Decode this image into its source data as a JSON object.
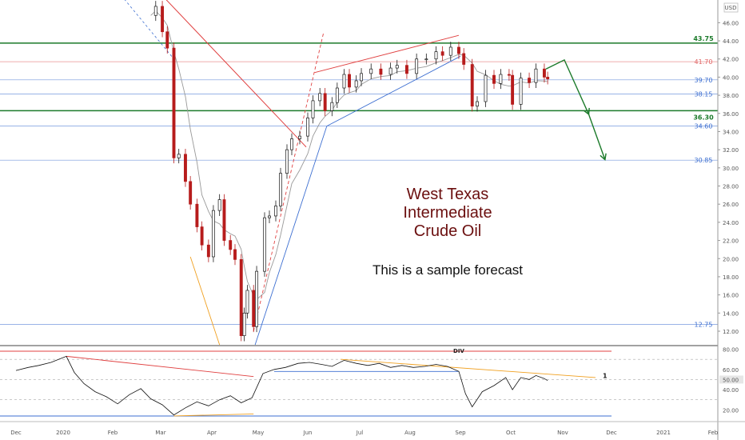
{
  "chart_data": {
    "type": "candlestick",
    "instrument": "West Texas Intermediate Crude Oil",
    "currency": "USD",
    "annotation_title_lines": [
      "West Texas",
      "Intermediate",
      "Crude Oil"
    ],
    "annotation_subtitle": "This is a sample forecast",
    "price_axis": {
      "range": [
        10.5,
        48.5
      ],
      "ticks": [
        "46.00",
        "44.00",
        "42.00",
        "40.00",
        "38.00",
        "36.00",
        "34.00",
        "32.00",
        "30.00",
        "28.00",
        "26.00",
        "24.00",
        "22.00",
        "20.00",
        "18.00",
        "16.00",
        "14.00",
        "12.00"
      ]
    },
    "x_axis": {
      "ticks": [
        "Dec",
        "2020",
        "Feb",
        "Mar",
        "Apr",
        "May",
        "Jun",
        "Jul",
        "Aug",
        "Sep",
        "Oct",
        "Nov",
        "Dec",
        "2021",
        "Feb"
      ]
    },
    "levels": [
      {
        "value": 43.75,
        "label": "43.75",
        "color": "#1b7a2a",
        "style": "strong"
      },
      {
        "value": 41.7,
        "label": "41.70",
        "color": "#e06666",
        "style": "thin"
      },
      {
        "value": 39.7,
        "label": "39.70",
        "color": "#3d6fd1",
        "style": "thin"
      },
      {
        "value": 38.15,
        "label": "38.15",
        "color": "#3d6fd1",
        "style": "thin"
      },
      {
        "value": 36.3,
        "label": "36.30",
        "color": "#1b7a2a",
        "style": "strong"
      },
      {
        "value": 34.6,
        "label": "34.60",
        "color": "#3d6fd1",
        "style": "thin"
      },
      {
        "value": 30.85,
        "label": "30.85",
        "color": "#3d6fd1",
        "style": "thin"
      },
      {
        "value": 12.75,
        "label": "12.75",
        "color": "#3d6fd1",
        "style": "thin"
      }
    ],
    "forecast_path": [
      {
        "date": "2020-10-22",
        "price": 40.9
      },
      {
        "date": "2020-11-02",
        "price": 41.9
      },
      {
        "date": "2020-11-17",
        "price": 35.9
      },
      {
        "date": "2020-11-27",
        "price": 30.9
      }
    ],
    "price_series": [
      {
        "date": "2020-02-24",
        "price": 46.8
      },
      {
        "date": "2020-02-27",
        "price": 47.8
      },
      {
        "date": "2020-03-02",
        "price": 45.0
      },
      {
        "date": "2020-03-05",
        "price": 43.2
      },
      {
        "date": "2020-03-09",
        "price": 31.1
      },
      {
        "date": "2020-03-12",
        "price": 31.5
      },
      {
        "date": "2020-03-16",
        "price": 28.5
      },
      {
        "date": "2020-03-19",
        "price": 26.0
      },
      {
        "date": "2020-03-23",
        "price": 23.5
      },
      {
        "date": "2020-03-26",
        "price": 21.5
      },
      {
        "date": "2020-03-30",
        "price": 20.2
      },
      {
        "date": "2020-04-02",
        "price": 25.3
      },
      {
        "date": "2020-04-06",
        "price": 26.5
      },
      {
        "date": "2020-04-09",
        "price": 22.0
      },
      {
        "date": "2020-04-13",
        "price": 21.0
      },
      {
        "date": "2020-04-16",
        "price": 19.9
      },
      {
        "date": "2020-04-20",
        "price": 11.5
      },
      {
        "date": "2020-04-22",
        "price": 14.0
      },
      {
        "date": "2020-04-24",
        "price": 16.5
      },
      {
        "date": "2020-04-28",
        "price": 12.5
      },
      {
        "date": "2020-04-30",
        "price": 18.6
      },
      {
        "date": "2020-05-05",
        "price": 24.5
      },
      {
        "date": "2020-05-08",
        "price": 24.7
      },
      {
        "date": "2020-05-12",
        "price": 25.8
      },
      {
        "date": "2020-05-15",
        "price": 29.4
      },
      {
        "date": "2020-05-19",
        "price": 32.0
      },
      {
        "date": "2020-05-22",
        "price": 33.2
      },
      {
        "date": "2020-05-27",
        "price": 33.5
      },
      {
        "date": "2020-06-01",
        "price": 35.5
      },
      {
        "date": "2020-06-04",
        "price": 37.4
      },
      {
        "date": "2020-06-08",
        "price": 38.2
      },
      {
        "date": "2020-06-11",
        "price": 36.3
      },
      {
        "date": "2020-06-15",
        "price": 37.2
      },
      {
        "date": "2020-06-18",
        "price": 38.8
      },
      {
        "date": "2020-06-22",
        "price": 40.3
      },
      {
        "date": "2020-06-25",
        "price": 38.9
      },
      {
        "date": "2020-06-29",
        "price": 39.6
      },
      {
        "date": "2020-07-02",
        "price": 40.4
      },
      {
        "date": "2020-07-08",
        "price": 40.9
      },
      {
        "date": "2020-07-14",
        "price": 40.3
      },
      {
        "date": "2020-07-20",
        "price": 41.0
      },
      {
        "date": "2020-07-24",
        "price": 41.3
      },
      {
        "date": "2020-07-30",
        "price": 40.4
      },
      {
        "date": "2020-08-05",
        "price": 42.0
      },
      {
        "date": "2020-08-11",
        "price": 42.0
      },
      {
        "date": "2020-08-17",
        "price": 42.8
      },
      {
        "date": "2020-08-21",
        "price": 42.4
      },
      {
        "date": "2020-08-26",
        "price": 43.3
      },
      {
        "date": "2020-08-31",
        "price": 42.6
      },
      {
        "date": "2020-09-03",
        "price": 41.4
      },
      {
        "date": "2020-09-08",
        "price": 36.8
      },
      {
        "date": "2020-09-11",
        "price": 37.3
      },
      {
        "date": "2020-09-16",
        "price": 40.2
      },
      {
        "date": "2020-09-21",
        "price": 39.3
      },
      {
        "date": "2020-09-25",
        "price": 40.3
      },
      {
        "date": "2020-09-30",
        "price": 40.2
      },
      {
        "date": "2020-10-02",
        "price": 37.0
      },
      {
        "date": "2020-10-07",
        "price": 39.9
      },
      {
        "date": "2020-10-12",
        "price": 39.4
      },
      {
        "date": "2020-10-16",
        "price": 40.9
      },
      {
        "date": "2020-10-21",
        "price": 40.0
      },
      {
        "date": "2020-10-23",
        "price": 39.8
      }
    ],
    "rsi_panel": {
      "range": [
        10,
        82
      ],
      "ticks": [
        "80.00",
        "60.00",
        "50.00",
        "40.00",
        "20.00"
      ],
      "labels": [
        "DIV",
        "1"
      ],
      "series": [
        {
          "date": "2019-12-01",
          "value": 59
        },
        {
          "date": "2019-12-09",
          "value": 62
        },
        {
          "date": "2019-12-16",
          "value": 64
        },
        {
          "date": "2019-12-24",
          "value": 67
        },
        {
          "date": "2020-01-03",
          "value": 73
        },
        {
          "date": "2020-01-08",
          "value": 57
        },
        {
          "date": "2020-01-14",
          "value": 46
        },
        {
          "date": "2020-01-21",
          "value": 38
        },
        {
          "date": "2020-01-28",
          "value": 33
        },
        {
          "date": "2020-02-04",
          "value": 26
        },
        {
          "date": "2020-02-11",
          "value": 35
        },
        {
          "date": "2020-02-18",
          "value": 41
        },
        {
          "date": "2020-02-24",
          "value": 31
        },
        {
          "date": "2020-03-02",
          "value": 25
        },
        {
          "date": "2020-03-09",
          "value": 15
        },
        {
          "date": "2020-03-16",
          "value": 22
        },
        {
          "date": "2020-03-23",
          "value": 28
        },
        {
          "date": "2020-03-30",
          "value": 24
        },
        {
          "date": "2020-04-06",
          "value": 30
        },
        {
          "date": "2020-04-13",
          "value": 34
        },
        {
          "date": "2020-04-20",
          "value": 27
        },
        {
          "date": "2020-04-27",
          "value": 32
        },
        {
          "date": "2020-05-04",
          "value": 56
        },
        {
          "date": "2020-05-11",
          "value": 60
        },
        {
          "date": "2020-05-18",
          "value": 62
        },
        {
          "date": "2020-05-26",
          "value": 66
        },
        {
          "date": "2020-06-02",
          "value": 67
        },
        {
          "date": "2020-06-09",
          "value": 65
        },
        {
          "date": "2020-06-15",
          "value": 63
        },
        {
          "date": "2020-06-22",
          "value": 69
        },
        {
          "date": "2020-06-29",
          "value": 66
        },
        {
          "date": "2020-07-06",
          "value": 64
        },
        {
          "date": "2020-07-13",
          "value": 66
        },
        {
          "date": "2020-07-20",
          "value": 62
        },
        {
          "date": "2020-07-27",
          "value": 64
        },
        {
          "date": "2020-08-03",
          "value": 62
        },
        {
          "date": "2020-08-10",
          "value": 63
        },
        {
          "date": "2020-08-17",
          "value": 65
        },
        {
          "date": "2020-08-24",
          "value": 63
        },
        {
          "date": "2020-08-31",
          "value": 58
        },
        {
          "date": "2020-09-04",
          "value": 36
        },
        {
          "date": "2020-09-08",
          "value": 23
        },
        {
          "date": "2020-09-14",
          "value": 38
        },
        {
          "date": "2020-09-21",
          "value": 44
        },
        {
          "date": "2020-09-28",
          "value": 52
        },
        {
          "date": "2020-10-02",
          "value": 40
        },
        {
          "date": "2020-10-07",
          "value": 52
        },
        {
          "date": "2020-10-12",
          "value": 50
        },
        {
          "date": "2020-10-16",
          "value": 54
        },
        {
          "date": "2020-10-21",
          "value": 51
        },
        {
          "date": "2020-10-23",
          "value": 49
        }
      ]
    }
  }
}
